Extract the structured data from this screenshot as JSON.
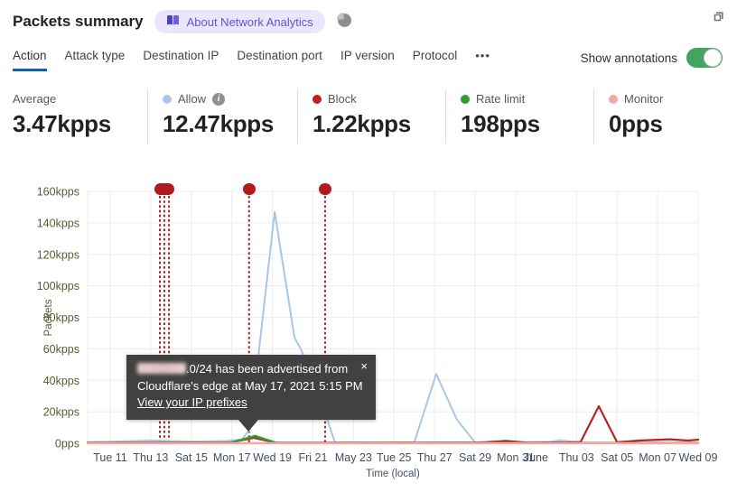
{
  "header": {
    "title": "Packets summary",
    "badge_label": "About Network Analytics"
  },
  "tabs": {
    "items": [
      "Action",
      "Attack type",
      "Destination IP",
      "Destination port",
      "IP version",
      "Protocol"
    ],
    "active": "Action",
    "more": "•••"
  },
  "annotations_toggle": {
    "label": "Show annotations",
    "on": true
  },
  "stats": [
    {
      "label": "Average",
      "value": "3.47kpps",
      "dot": null
    },
    {
      "label": "Allow",
      "value": "12.47kpps",
      "dot": "#a9c6e8",
      "info": true
    },
    {
      "label": "Block",
      "value": "1.22kpps",
      "dot": "#bf1f1f"
    },
    {
      "label": "Rate limit",
      "value": "198pps",
      "dot": "#2f9e2f"
    },
    {
      "label": "Monitor",
      "value": "0pps",
      "dot": "#f5a6a6"
    }
  ],
  "tooltip": {
    "line1": ".0/24 has been advertised from",
    "line2": "Cloudflare's edge at May 17, 2021 5:15 PM",
    "link_label": "View your IP prefixes",
    "close_glyph": "×"
  },
  "chart_data": {
    "type": "line",
    "title": "Packets summary",
    "xlabel": "Time (local)",
    "ylabel": "Packets",
    "x_unit": "days since Tue May 11 2021",
    "y_unit": "kpps",
    "ylim_kpps": [
      0,
      160
    ],
    "y_ticks": [
      "0pps",
      "20kpps",
      "40kpps",
      "60kpps",
      "80kpps",
      "100kpps",
      "120kpps",
      "140kpps",
      "160kpps"
    ],
    "x_ticks": [
      {
        "label": "Tue 11",
        "d": 0
      },
      {
        "label": "Thu 13",
        "d": 2
      },
      {
        "label": "Sat 15",
        "d": 4
      },
      {
        "label": "Mon 17",
        "d": 6
      },
      {
        "label": "Wed 19",
        "d": 8
      },
      {
        "label": "Fri 21",
        "d": 10
      },
      {
        "label": "May 23",
        "d": 12
      },
      {
        "label": "Tue 25",
        "d": 14
      },
      {
        "label": "Thu 27",
        "d": 16
      },
      {
        "label": "Sat 29",
        "d": 18
      },
      {
        "label": "Mon 31",
        "d": 20
      },
      {
        "label": "June",
        "d": 21,
        "no_grid": true
      },
      {
        "label": "Thu 03",
        "d": 23
      },
      {
        "label": "Sat 05",
        "d": 25
      },
      {
        "label": "Mon 07",
        "d": 27
      },
      {
        "label": "Wed 09",
        "d": 29
      }
    ],
    "series": [
      {
        "name": "Allow",
        "color": "#a9c6e8",
        "points": [
          [
            -1.11,
            0.8
          ],
          [
            0,
            1.0
          ],
          [
            2.05,
            1.8
          ],
          [
            4.1,
            1.1
          ],
          [
            5.8,
            1.5
          ],
          [
            6.5,
            2.5
          ],
          [
            6.9,
            9
          ],
          [
            8.11,
            147
          ],
          [
            9.09,
            67
          ],
          [
            9.4,
            60
          ],
          [
            10.34,
            30
          ],
          [
            10.73,
            14
          ],
          [
            11.09,
            0.6
          ],
          [
            13.3,
            0.4
          ],
          [
            15,
            0.6
          ],
          [
            16.08,
            44
          ],
          [
            17.1,
            15
          ],
          [
            18,
            0.5
          ],
          [
            19,
            1.4
          ],
          [
            19.8,
            0.6
          ],
          [
            21.7,
            0.9
          ],
          [
            22.2,
            1.9
          ],
          [
            23.1,
            0.5
          ],
          [
            25.7,
            0.4
          ],
          [
            29,
            0.4
          ]
        ]
      },
      {
        "name": "Block",
        "color": "#b42525",
        "points": [
          [
            -1.11,
            0.35
          ],
          [
            2,
            0.45
          ],
          [
            5.9,
            0.45
          ],
          [
            7.1,
            3.4
          ],
          [
            8.1,
            0.45
          ],
          [
            13,
            0.35
          ],
          [
            18.5,
            0.5
          ],
          [
            19.5,
            1.5
          ],
          [
            20.6,
            0.4
          ],
          [
            22.6,
            0.6
          ],
          [
            23.2,
            0.8
          ],
          [
            24.1,
            23.5
          ],
          [
            25.0,
            0.7
          ],
          [
            26.2,
            1.8
          ],
          [
            27.6,
            2.5
          ],
          [
            28.5,
            1.7
          ],
          [
            29,
            2.3
          ]
        ]
      },
      {
        "name": "Rate limit",
        "color": "#2f9e2f",
        "points": [
          [
            -1.11,
            0.15
          ],
          [
            5.9,
            0.2
          ],
          [
            7.15,
            4.6
          ],
          [
            8.2,
            0.2
          ],
          [
            29,
            0.15
          ]
        ]
      },
      {
        "name": "Monitor",
        "color": "#f5a6a6",
        "points": [
          [
            -1.11,
            0
          ],
          [
            29,
            0
          ]
        ]
      }
    ],
    "annotations": {
      "line_days": [
        2.45,
        2.67,
        2.9,
        6.85,
        10.6
      ],
      "markers": [
        {
          "d": 2.67,
          "w": 22
        },
        {
          "d": 6.85,
          "w": 14
        },
        {
          "d": 10.6,
          "w": 14
        }
      ],
      "line_color": "#a52323",
      "marker_color": "#b11a1a",
      "selected_annotation_day": 6.85
    },
    "style": {
      "grid_color": "#ededed",
      "y_tick_color": "#5b5b35",
      "x_tick_color": "#43505e"
    }
  }
}
